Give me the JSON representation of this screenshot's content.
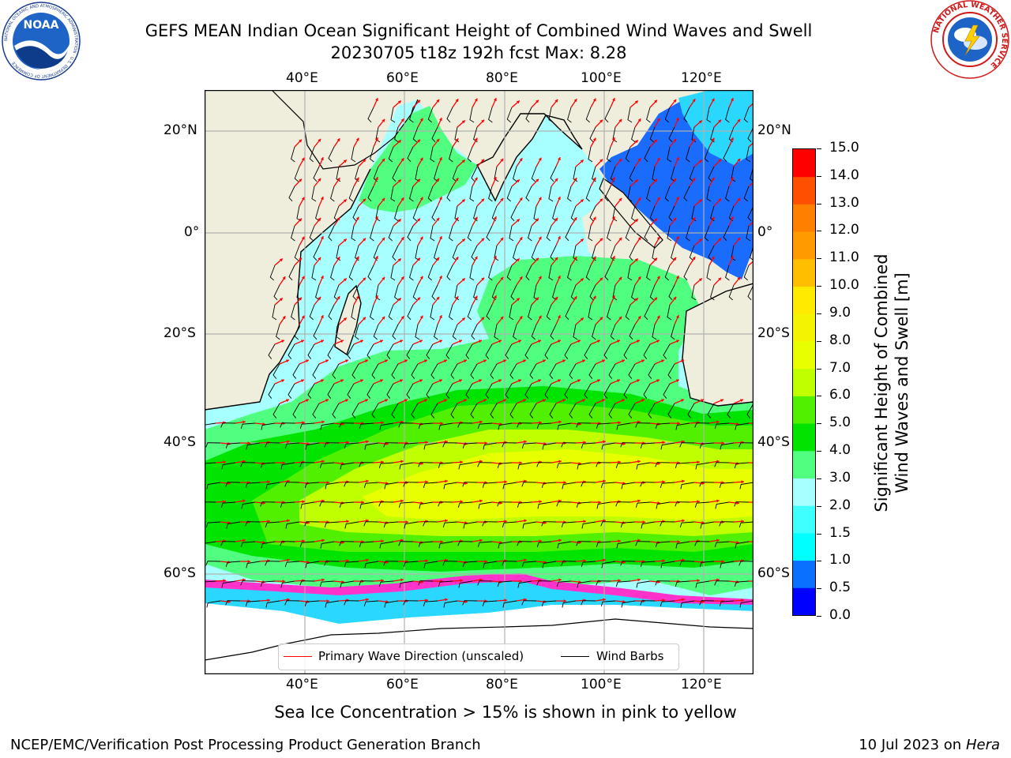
{
  "title": {
    "line1": "GEFS MEAN Indian Ocean Significant Height of Combined Wind Waves and Swell",
    "line2": "20230705 t18z 192h fcst   Max: 8.28"
  },
  "logos": {
    "noaa": {
      "text": "NOAA",
      "ring_text": "NATIONAL OCEANIC AND ATMOSPHERIC ADMINISTRATION · U.S. DEPARTMENT OF COMMERCE"
    },
    "nws": {
      "ring_text": "NATIONAL WEATHER SERVICE"
    }
  },
  "axes": {
    "top_lon": [
      "40°E",
      "60°E",
      "80°E",
      "100°E",
      "120°E"
    ],
    "bottom_lon": [
      "40°E",
      "60°E",
      "80°E",
      "100°E",
      "120°E"
    ],
    "left_lat": [
      "20°N",
      "0°",
      "20°S",
      "40°S",
      "60°S"
    ],
    "right_lat": [
      "20°N",
      "0°",
      "20°S",
      "40°S",
      "60°S"
    ],
    "lon_range": [
      20,
      130
    ],
    "lat_range": [
      -74,
      28
    ],
    "grid": true
  },
  "colorbar": {
    "label_line1": "Significant Height of Combined",
    "label_line2": "Wind Waves and Swell [m]",
    "ticks": [
      "0.0",
      "0.5",
      "1.0",
      "1.5",
      "2.0",
      "3.0",
      "4.0",
      "5.0",
      "6.0",
      "7.0",
      "8.0",
      "9.0",
      "10.0",
      "11.0",
      "12.0",
      "13.0",
      "14.0",
      "15.0"
    ],
    "colors": [
      "#0000ff",
      "#0a70ff",
      "#00ffff",
      "#40ffff",
      "#a8ffff",
      "#50ff80",
      "#00e400",
      "#50f000",
      "#c0ff00",
      "#e8ff00",
      "#f4f400",
      "#ffea00",
      "#ffbe00",
      "#ff9b00",
      "#ff7f00",
      "#ff5000",
      "#ff0000"
    ]
  },
  "legend": {
    "wave_direction": "Primary Wave Direction (unscaled)",
    "wind_barbs": "Wind Barbs"
  },
  "note": "Sea Ice Concentration > 15% is shown in pink to yellow",
  "footer": {
    "left": "NCEP/EMC/Verification Post Processing Product Generation Branch",
    "right_date": "10 Jul 2023 on ",
    "right_host": "Hera"
  },
  "colors": {
    "land": "#efeedd",
    "wave_direction": "#ff0000",
    "wind_barbs": "#000000",
    "grid": "#b0b0b0",
    "sea_ice": "#ff33cc"
  }
}
